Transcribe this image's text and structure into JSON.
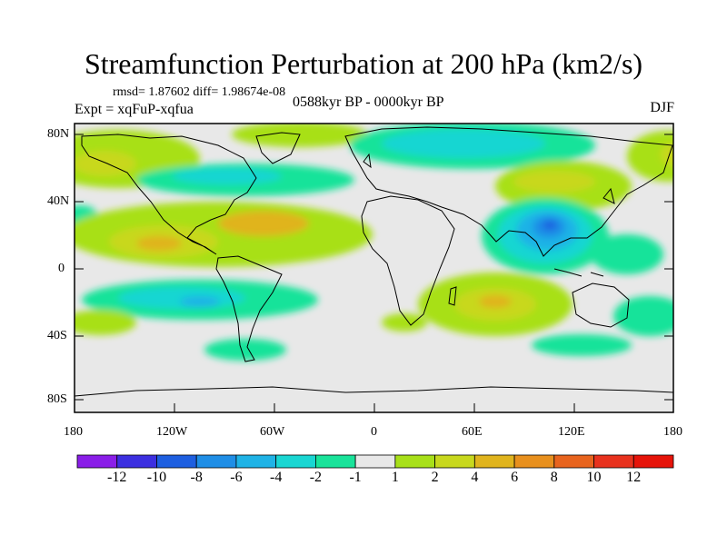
{
  "title": "Streamfunction Perturbation at 200 hPa (km2/s)",
  "stats": "rmsd= 1.87602 diff= 1.98674e-08",
  "experiment": "Expt = xqFuP-xqfua",
  "period": "0588kyr BP - 0000kyr BP",
  "season": "DJF",
  "axes": {
    "lat_ticks": [
      "80N",
      "40N",
      "0",
      "40S",
      "80S"
    ],
    "lon_ticks": [
      "180",
      "120W",
      "60W",
      "0",
      "60E",
      "120E",
      "180"
    ]
  },
  "colorbar": {
    "labels": [
      "-12",
      "-10",
      "-8",
      "-6",
      "-4",
      "-2",
      "-1",
      "1",
      "2",
      "4",
      "6",
      "8",
      "10",
      "12"
    ],
    "colors": [
      "#8a1ee8",
      "#3c2fe0",
      "#1e5fe0",
      "#1f8ee6",
      "#1fb3e6",
      "#19d6d2",
      "#19e39a",
      "#e8e8e8",
      "#a8e019",
      "#c8d81e",
      "#e0b41e",
      "#e8901e",
      "#e8641e",
      "#e8321e",
      "#e6140a"
    ]
  }
}
